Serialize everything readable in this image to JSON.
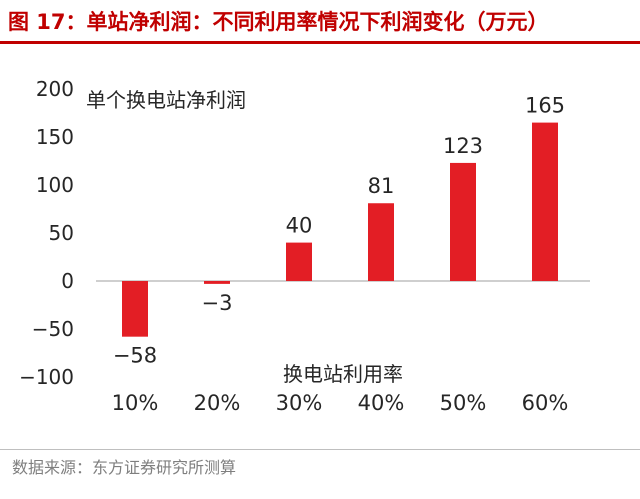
{
  "header": {
    "title": "图 17：单站净利润：不同利用率情况下利润变化（万元）"
  },
  "footer": {
    "source": "数据来源：东方证券研究所测算"
  },
  "colors": {
    "accent": "#c00000",
    "bar": "#e31e25",
    "text": "#262626",
    "axis": "#bfbfbf",
    "muted": "#7f7f7f"
  },
  "chart_data": {
    "type": "bar",
    "title": "单个换电站净利润",
    "xlabel": "换电站利用率",
    "ylabel": "",
    "categories": [
      "10%",
      "20%",
      "30%",
      "40%",
      "50%",
      "60%"
    ],
    "values": [
      -58,
      -3,
      40,
      81,
      123,
      165
    ],
    "data_labels": [
      "−58",
      "−3",
      "40",
      "81",
      "123",
      "165"
    ],
    "yticks": [
      200,
      150,
      100,
      50,
      0,
      -50,
      -100
    ],
    "ytick_labels": [
      "200",
      "150",
      "100",
      "50",
      "0",
      "−50",
      "−100"
    ],
    "ylim": [
      -100,
      200
    ],
    "grid": false,
    "legend": "none"
  }
}
